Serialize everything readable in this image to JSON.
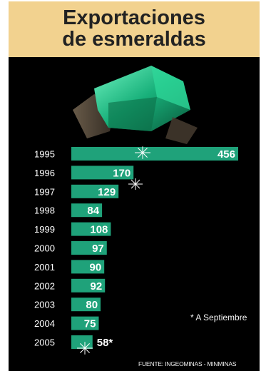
{
  "title": {
    "line1": "Exportaciones",
    "line2": "de esmeraldas"
  },
  "note": "* A Septiembre",
  "source": "FUENTE: INGEOMINAS - MINMINAS",
  "colors": {
    "bar": "#1fa27a",
    "background": "#000000",
    "title_bg": "#f2d28f",
    "value_text": "#ffffff",
    "year_text": "#ffffff"
  },
  "chart_data": {
    "type": "bar",
    "orientation": "horizontal",
    "title": "Exportaciones de esmeraldas",
    "categories": [
      "1995",
      "1996",
      "1997",
      "1998",
      "1999",
      "2000",
      "2001",
      "2002",
      "2003",
      "2004",
      "2005"
    ],
    "values": [
      456,
      170,
      129,
      84,
      108,
      97,
      90,
      92,
      80,
      75,
      58
    ],
    "value_labels": [
      "456",
      "170",
      "129",
      "84",
      "108",
      "97",
      "90",
      "92",
      "80",
      "75",
      "58*"
    ],
    "xlim": [
      0,
      456
    ],
    "grid": false,
    "legend": "none"
  }
}
